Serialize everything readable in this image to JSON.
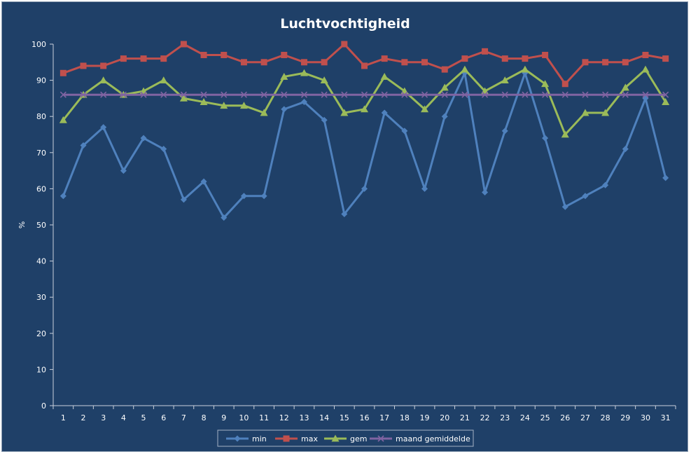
{
  "chart_data": {
    "type": "line",
    "title": "Luchtvochtigheid",
    "xlabel": "",
    "ylabel": "%",
    "ylim": [
      0,
      100
    ],
    "yticks": [
      0,
      10,
      20,
      30,
      40,
      50,
      60,
      70,
      80,
      90,
      100
    ],
    "categories": [
      "1",
      "2",
      "3",
      "4",
      "5",
      "6",
      "7",
      "8",
      "9",
      "10",
      "11",
      "12",
      "13",
      "14",
      "15",
      "16",
      "17",
      "18",
      "19",
      "20",
      "21",
      "22",
      "23",
      "24",
      "25",
      "26",
      "27",
      "28",
      "29",
      "30",
      "31"
    ],
    "grid": false,
    "legend_position": "bottom",
    "series": [
      {
        "name": "min",
        "color": "#4f81bd",
        "marker": "diamond",
        "values": [
          58,
          72,
          77,
          65,
          74,
          71,
          57,
          62,
          52,
          58,
          58,
          82,
          84,
          79,
          53,
          60,
          81,
          76,
          60,
          80,
          92,
          59,
          76,
          92,
          74,
          55,
          58,
          61,
          71,
          85,
          63
        ]
      },
      {
        "name": "max",
        "color": "#c0504d",
        "marker": "square",
        "values": [
          92,
          94,
          94,
          96,
          96,
          96,
          100,
          97,
          97,
          95,
          95,
          97,
          95,
          95,
          100,
          94,
          96,
          95,
          95,
          93,
          96,
          98,
          96,
          96,
          97,
          89,
          95,
          95,
          95,
          97,
          96
        ]
      },
      {
        "name": "gem",
        "color": "#9bbb59",
        "marker": "triangle",
        "values": [
          79,
          86,
          90,
          86,
          87,
          90,
          85,
          84,
          83,
          83,
          81,
          91,
          92,
          90,
          81,
          82,
          91,
          87,
          82,
          88,
          93,
          87,
          90,
          93,
          89,
          75,
          81,
          81,
          88,
          93,
          84
        ]
      },
      {
        "name": "maand gemiddelde",
        "color": "#8064a2",
        "marker": "x",
        "values": [
          86,
          86,
          86,
          86,
          86,
          86,
          86,
          86,
          86,
          86,
          86,
          86,
          86,
          86,
          86,
          86,
          86,
          86,
          86,
          86,
          86,
          86,
          86,
          86,
          86,
          86,
          86,
          86,
          86,
          86,
          86
        ]
      }
    ]
  }
}
